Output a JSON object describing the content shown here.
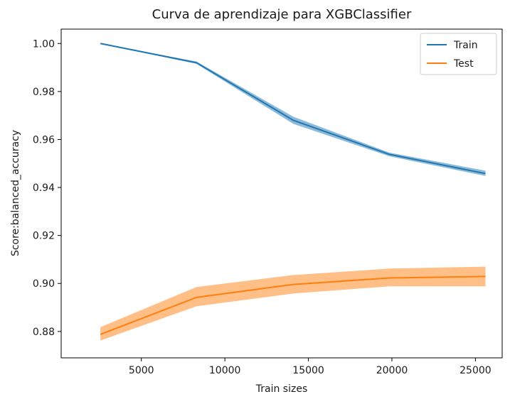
{
  "chart_data": {
    "type": "line",
    "title": "Curva de aprendizaje para XGBClassifier",
    "xlabel": "Train sizes",
    "ylabel": "Score:balanced_accuracy",
    "xlim": [
      200,
      26600
    ],
    "ylim": [
      0.869,
      1.006
    ],
    "xticks": [
      5000,
      10000,
      15000,
      20000,
      25000
    ],
    "xtick_labels": [
      "5000",
      "10000",
      "15000",
      "20000",
      "25000"
    ],
    "yticks": [
      0.88,
      0.9,
      0.92,
      0.94,
      0.96,
      0.98,
      1.0
    ],
    "ytick_labels": [
      "0.88",
      "0.90",
      "0.92",
      "0.94",
      "0.96",
      "0.98",
      "1.00"
    ],
    "grid": false,
    "legend_position": "top-right",
    "x": [
      2550,
      8300,
      14100,
      19850,
      25600
    ],
    "series": [
      {
        "name": "Train",
        "color": "#1f77b4",
        "values": [
          1.0,
          0.992,
          0.968,
          0.9538,
          0.9458
        ],
        "band_upper": [
          1.0,
          0.9925,
          0.9695,
          0.9545,
          0.947
        ],
        "band_lower": [
          1.0,
          0.9915,
          0.9665,
          0.953,
          0.9448
        ]
      },
      {
        "name": "Test",
        "color": "#ff7f0e",
        "values": [
          0.8788,
          0.8942,
          0.8996,
          0.9023,
          0.9029
        ],
        "band_upper": [
          0.8818,
          0.8985,
          0.9035,
          0.9062,
          0.907
        ],
        "band_lower": [
          0.8762,
          0.8905,
          0.8958,
          0.8988,
          0.8988
        ]
      }
    ]
  }
}
